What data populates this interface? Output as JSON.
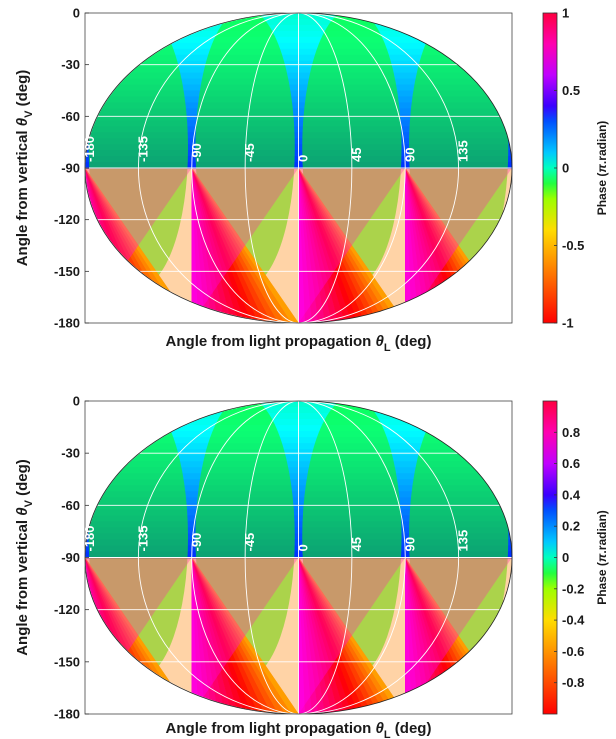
{
  "chart_data": [
    {
      "type": "heatmap",
      "projection": "Mollweide-like elliptical",
      "xlabel_main": "Angle from light propagation ",
      "xlabel_sym": "θ",
      "xlabel_sub": "L",
      "xlabel_unit": " (deg)",
      "ylabel_main": "Angle from vertical ",
      "ylabel_sym": "θ",
      "ylabel_sub": "V",
      "ylabel_unit": " (deg)",
      "y_ticks": [
        "0",
        "-30",
        "-60",
        "-90",
        "-120",
        "-150",
        "-180"
      ],
      "y_tick_values": [
        0,
        -30,
        -60,
        -90,
        -120,
        -150,
        -180
      ],
      "ylim": [
        -180,
        0
      ],
      "meridian_labels": [
        "-180",
        "-135",
        "-90",
        "-45",
        "0",
        "45",
        "90",
        "135"
      ],
      "meridian_values": [
        -180,
        -135,
        -90,
        -45,
        0,
        45,
        90,
        135
      ],
      "xlim": [
        -180,
        180
      ],
      "colorbar": {
        "label_main": "Phase (",
        "label_sym": "π",
        "label_unit": ".radian)",
        "ticks": [
          "1",
          "0.5",
          "0",
          "-0.5",
          "-1"
        ],
        "tick_values": [
          1,
          0.5,
          0,
          -0.5,
          -1
        ],
        "range": [
          -1,
          1
        ]
      },
      "grid": true
    },
    {
      "type": "heatmap",
      "projection": "Mollweide-like elliptical",
      "xlabel_main": "Angle from light propagation ",
      "xlabel_sym": "θ",
      "xlabel_sub": "L",
      "xlabel_unit": " (deg)",
      "ylabel_main": "Angle from vertical ",
      "ylabel_sym": "θ",
      "ylabel_sub": "V",
      "ylabel_unit": " (deg)",
      "y_ticks": [
        "0",
        "-30",
        "-60",
        "-90",
        "-120",
        "-150",
        "-180"
      ],
      "y_tick_values": [
        0,
        -30,
        -60,
        -90,
        -120,
        -150,
        -180
      ],
      "ylim": [
        -180,
        0
      ],
      "meridian_labels": [
        "-180",
        "-135",
        "-90",
        "-45",
        "0",
        "45",
        "90",
        "135"
      ],
      "meridian_values": [
        -180,
        -135,
        -90,
        -45,
        0,
        45,
        90,
        135
      ],
      "xlim": [
        -180,
        180
      ],
      "colorbar": {
        "label_main": "Phase (",
        "label_sym": "π",
        "label_unit": ".radian)",
        "ticks": [
          "0.8",
          "0.6",
          "0.4",
          "0.2",
          "0",
          "-0.2",
          "-0.4",
          "-0.6",
          "-0.8"
        ],
        "tick_values": [
          0.8,
          0.6,
          0.4,
          0.2,
          0,
          -0.2,
          -0.4,
          -0.6,
          -0.8
        ],
        "range": [
          -1,
          1
        ]
      },
      "grid": true
    }
  ]
}
